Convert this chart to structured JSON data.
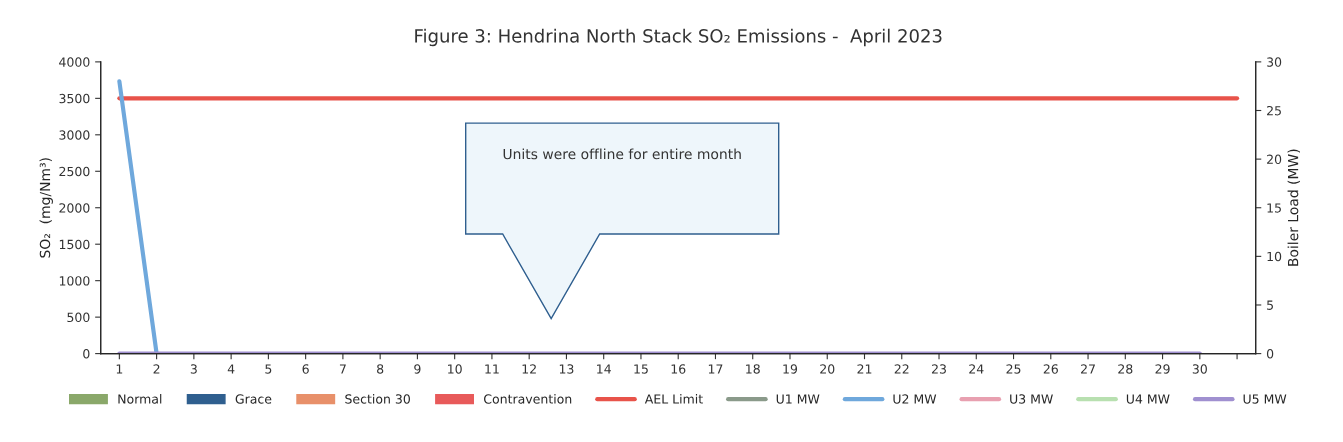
{
  "chart_data": {
    "type": "bar",
    "title": "Figure 3: Hendrina North Stack SO₂ Emissions -  April 2023",
    "ylabel": "SO₂  (mg/Nm³)",
    "y2label": "Boiler Load (MW)",
    "categories": [
      "1",
      "2",
      "3",
      "4",
      "5",
      "6",
      "7",
      "8",
      "9",
      "10",
      "11",
      "12",
      "13",
      "14",
      "15",
      "16",
      "17",
      "18",
      "19",
      "20",
      "21",
      "22",
      "23",
      "24",
      "25",
      "26",
      "27",
      "28",
      "29",
      "30",
      null
    ],
    "series": [
      {
        "name": "Normal",
        "color": "#8aa86a",
        "values": [
          null,
          null,
          null,
          null,
          null,
          null,
          null,
          null,
          null,
          null,
          null,
          null,
          null,
          null,
          null,
          null,
          null,
          null,
          null,
          null,
          null,
          null,
          null,
          null,
          null,
          null,
          null,
          null,
          null,
          null,
          null
        ]
      },
      {
        "name": "Grace",
        "color": "#2f5f8f",
        "values": [
          null,
          null,
          null,
          null,
          null,
          null,
          null,
          null,
          null,
          null,
          null,
          null,
          null,
          null,
          null,
          null,
          null,
          null,
          null,
          null,
          null,
          null,
          null,
          null,
          null,
          null,
          null,
          null,
          null,
          null,
          null
        ]
      },
      {
        "name": "Section 30",
        "color": "#e8906a",
        "values": [
          null,
          null,
          null,
          null,
          null,
          null,
          null,
          null,
          null,
          null,
          null,
          null,
          null,
          null,
          null,
          null,
          null,
          null,
          null,
          null,
          null,
          null,
          null,
          null,
          null,
          null,
          null,
          null,
          null,
          null,
          null
        ]
      },
      {
        "name": "Contravention",
        "color": "#e85a5a",
        "values": [
          null,
          null,
          null,
          null,
          null,
          null,
          null,
          null,
          null,
          null,
          null,
          null,
          null,
          null,
          null,
          null,
          null,
          null,
          null,
          null,
          null,
          null,
          null,
          null,
          null,
          null,
          null,
          null,
          null,
          null,
          null
        ]
      },
      {
        "name": "AEL Limit",
        "type": "line",
        "color": "#e8534a",
        "values": [
          3500,
          3500,
          3500,
          3500,
          3500,
          3500,
          3500,
          3500,
          3500,
          3500,
          3500,
          3500,
          3500,
          3500,
          3500,
          3500,
          3500,
          3500,
          3500,
          3500,
          3500,
          3500,
          3500,
          3500,
          3500,
          3500,
          3500,
          3500,
          3500,
          3500,
          3500
        ]
      },
      {
        "name": "U1 MW",
        "type": "line",
        "axis": "y2",
        "color": "#8a9a8a",
        "values": [
          null,
          null,
          null,
          null,
          null,
          null,
          null,
          null,
          null,
          null,
          null,
          null,
          null,
          null,
          null,
          null,
          null,
          null,
          null,
          null,
          null,
          null,
          null,
          null,
          null,
          null,
          null,
          null,
          null,
          null,
          null
        ]
      },
      {
        "name": "U2 MW",
        "type": "line",
        "axis": "y2",
        "color": "#6fa8dc",
        "values": [
          28,
          0,
          null,
          null,
          null,
          null,
          null,
          null,
          null,
          null,
          null,
          null,
          null,
          null,
          null,
          null,
          null,
          null,
          null,
          null,
          null,
          null,
          null,
          null,
          null,
          null,
          null,
          null,
          null,
          null,
          null
        ]
      },
      {
        "name": "U3 MW",
        "type": "line",
        "axis": "y2",
        "color": "#e8a0b0",
        "values": [
          null,
          null,
          null,
          null,
          null,
          null,
          null,
          null,
          null,
          null,
          null,
          null,
          null,
          null,
          null,
          null,
          null,
          null,
          null,
          null,
          null,
          null,
          null,
          null,
          null,
          null,
          null,
          null,
          null,
          null,
          null
        ]
      },
      {
        "name": "U4 MW",
        "type": "line",
        "axis": "y2",
        "color": "#b8e0b0",
        "values": [
          null,
          null,
          null,
          null,
          null,
          null,
          null,
          null,
          null,
          null,
          null,
          null,
          null,
          null,
          null,
          null,
          null,
          null,
          null,
          null,
          null,
          null,
          null,
          null,
          null,
          null,
          null,
          null,
          null,
          null,
          null
        ]
      },
      {
        "name": "U5 MW",
        "type": "line",
        "axis": "y2",
        "color": "#a090d0",
        "values": [
          0,
          0,
          0,
          0,
          0,
          0,
          0,
          0,
          0,
          0,
          0,
          0,
          0,
          0,
          0,
          0,
          0,
          0,
          0,
          0,
          0,
          0,
          0,
          0,
          0,
          0,
          0,
          0,
          0,
          0,
          null
        ]
      }
    ],
    "ylim": [
      0,
      4000
    ],
    "yticks": [
      0,
      500,
      1000,
      1500,
      2000,
      2500,
      3000,
      3500,
      4000
    ],
    "y2lim": [
      0,
      30
    ],
    "y2ticks": [
      0,
      5,
      10,
      15,
      20,
      25,
      30
    ],
    "annotations": [
      "Units were offline for entire month"
    ],
    "grid": false,
    "legend": "bottom"
  }
}
